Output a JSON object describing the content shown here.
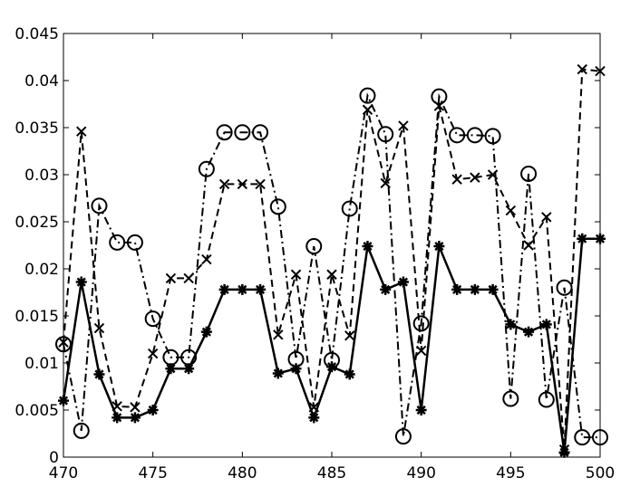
{
  "chart_data": {
    "type": "line",
    "x": [
      470,
      471,
      472,
      473,
      474,
      475,
      476,
      477,
      478,
      479,
      480,
      481,
      482,
      483,
      484,
      485,
      486,
      487,
      488,
      489,
      490,
      491,
      492,
      493,
      494,
      495,
      496,
      497,
      498,
      499,
      500
    ],
    "series": [
      {
        "color": "#000000",
        "linestyle": "solid",
        "marker": "asterisk",
        "values": [
          0.006,
          0.0186,
          0.0088,
          0.0042,
          0.0042,
          0.005,
          0.0094,
          0.0094,
          0.0133,
          0.0178,
          0.0178,
          0.0178,
          0.0089,
          0.0094,
          0.0042,
          0.0096,
          0.0088,
          0.0224,
          0.0178,
          0.0186,
          0.005,
          0.0224,
          0.0178,
          0.0178,
          0.0178,
          0.0141,
          0.0133,
          0.0141,
          0.0005,
          0.0232,
          0.0232
        ]
      },
      {
        "color": "#000000",
        "linestyle": "dashed",
        "marker": "x",
        "values": [
          0.0122,
          0.0346,
          0.0137,
          0.0054,
          0.0053,
          0.011,
          0.019,
          0.019,
          0.021,
          0.029,
          0.029,
          0.029,
          0.013,
          0.0194,
          0.0053,
          0.0194,
          0.0129,
          0.0369,
          0.0291,
          0.0352,
          0.0113,
          0.0373,
          0.0295,
          0.0297,
          0.03,
          0.0262,
          0.0225,
          0.0255,
          0.0008,
          0.0412,
          0.041
        ]
      },
      {
        "color": "#000000",
        "linestyle": "dashdot",
        "marker": "circle",
        "values": [
          0.012,
          0.0028,
          0.0267,
          0.0228,
          0.0228,
          0.0147,
          0.0106,
          0.0106,
          0.0306,
          0.0345,
          0.0345,
          0.0345,
          0.0266,
          0.0104,
          0.0224,
          0.0103,
          0.0264,
          0.0384,
          0.0343,
          0.0022,
          0.0142,
          0.0383,
          0.0342,
          0.0342,
          0.0341,
          0.0062,
          0.0301,
          0.0061,
          0.018,
          0.0021,
          0.0021
        ]
      }
    ],
    "xlim": [
      470,
      500
    ],
    "xticks": [
      470,
      475,
      480,
      485,
      490,
      495,
      500
    ],
    "ylim": [
      0,
      0.045
    ],
    "yticks": [
      0,
      0.005,
      0.01,
      0.015,
      0.02,
      0.025,
      0.03,
      0.035,
      0.04,
      0.045
    ],
    "grid": false
  }
}
